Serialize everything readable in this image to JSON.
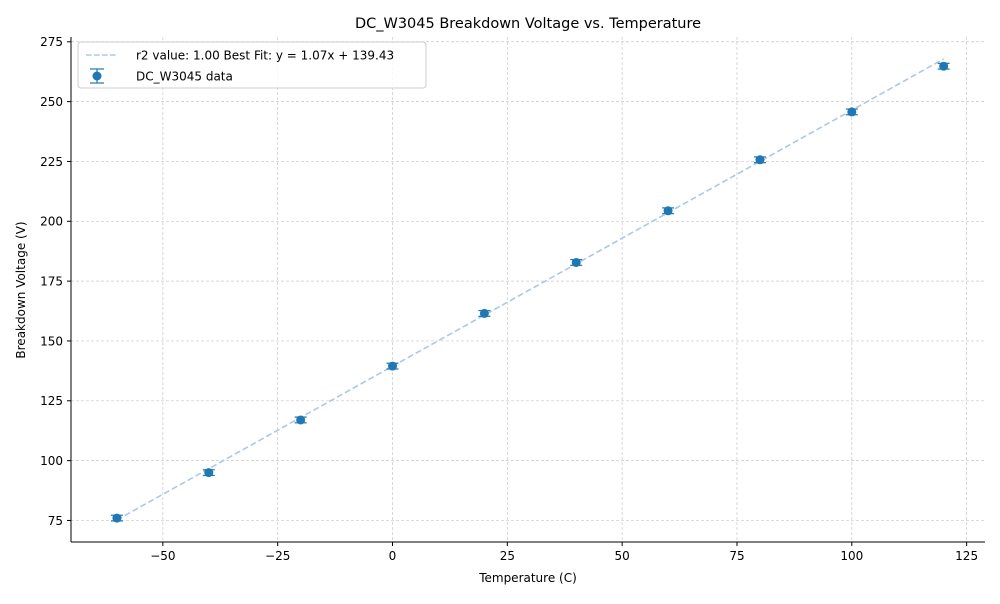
{
  "chart_data": {
    "type": "scatter",
    "title": "DC_W3045 Breakdown Voltage vs. Temperature",
    "xlabel": "Temperature (C)",
    "ylabel": "Breakdown Voltage (V)",
    "xlim": [
      -70,
      129
    ],
    "ylim": [
      66,
      277
    ],
    "xticks": [
      -50,
      -25,
      0,
      25,
      50,
      75,
      100,
      125
    ],
    "xtick_labels": [
      "−50",
      "−25",
      "0",
      "25",
      "50",
      "75",
      "100",
      "125"
    ],
    "yticks": [
      75,
      100,
      125,
      150,
      175,
      200,
      225,
      250,
      275
    ],
    "ytick_labels": [
      "75",
      "100",
      "125",
      "150",
      "175",
      "200",
      "225",
      "250",
      "275"
    ],
    "grid": true,
    "legend_position": "top-left",
    "series": [
      {
        "name": "DC_W3045 data",
        "kind": "errorbar-points",
        "color": "#1f77b4",
        "x": [
          -60,
          -40,
          -20,
          0,
          20,
          40,
          60,
          80,
          100,
          120
        ],
        "y": [
          76.0,
          95.0,
          117.0,
          139.5,
          161.5,
          182.8,
          204.4,
          225.7,
          245.7,
          264.8
        ],
        "yerr": [
          1.2,
          1.2,
          1.2,
          1.2,
          1.2,
          1.2,
          1.2,
          1.2,
          1.2,
          1.2
        ]
      },
      {
        "name": "r2 value: 1.00 Best Fit: y = 1.07x + 139.43",
        "kind": "fit-line",
        "color": "#aec7e8",
        "slope": 1.07,
        "intercept": 139.43,
        "x_range": [
          -60,
          120
        ]
      }
    ]
  }
}
